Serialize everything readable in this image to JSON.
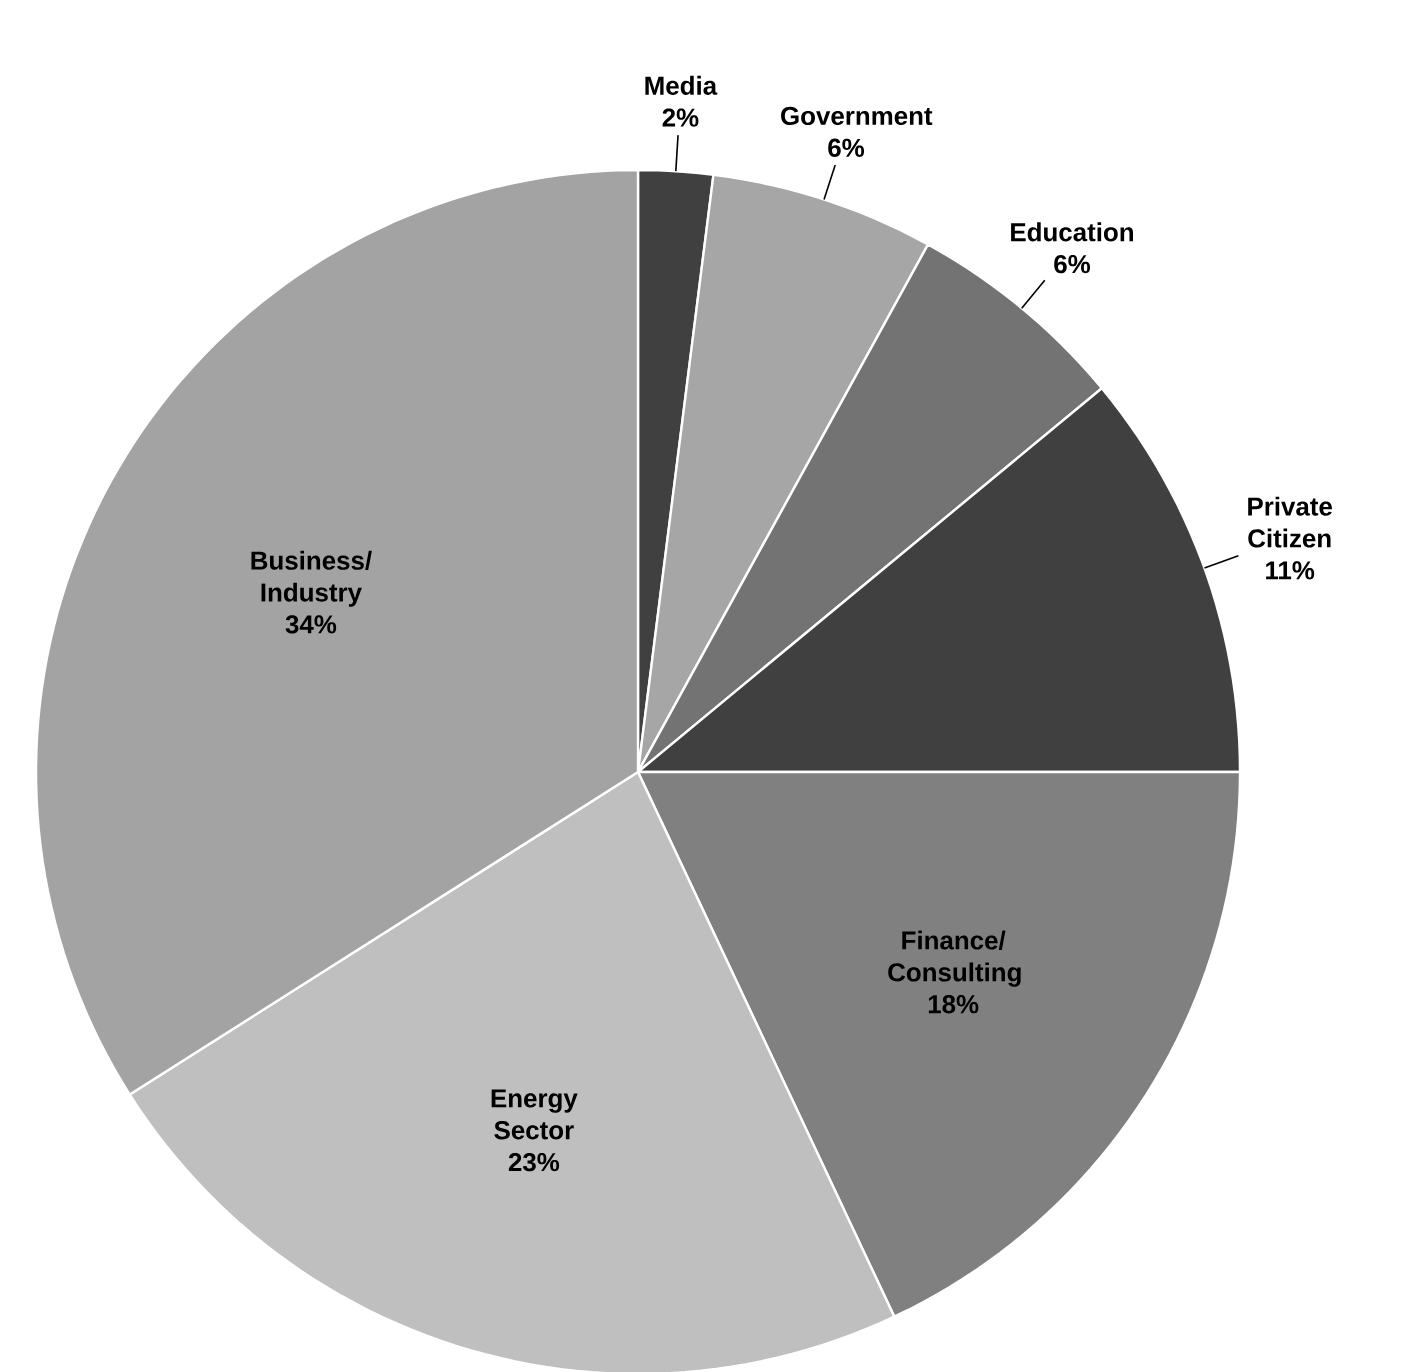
{
  "chart_data": {
    "type": "pie",
    "categories": [
      "Media",
      "Government",
      "Education",
      "Private Citizen",
      "Finance/ Consulting",
      "Energy Sector",
      "Business/ Industry"
    ],
    "values": [
      2,
      6,
      6,
      11,
      18,
      23,
      34
    ],
    "colors": [
      "#404040",
      "#a6a6a6",
      "#737373",
      "#404040",
      "#808080",
      "#bfbfbf",
      "#a3a3a3"
    ],
    "value_labels": [
      "2%",
      "6%",
      "6%",
      "11%",
      "18%",
      "23%",
      "34%"
    ]
  }
}
